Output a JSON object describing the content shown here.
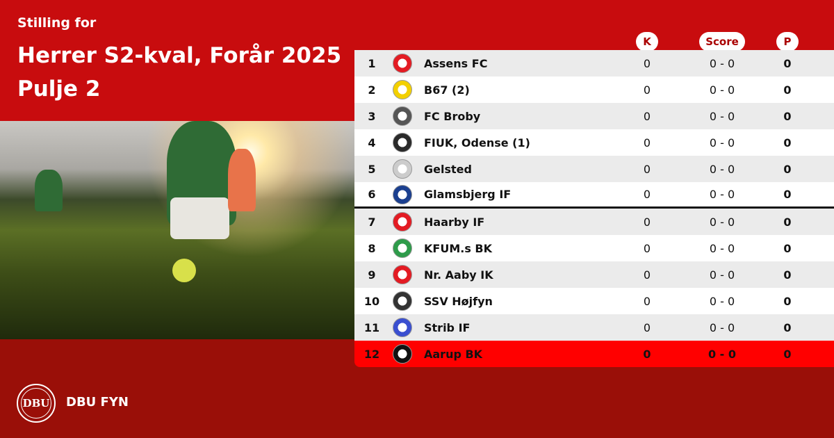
{
  "header": {
    "subtitle": "Stilling for",
    "title_line1": "Herrer S2-kval, Forår 2025",
    "title_line2": "Pulje 2"
  },
  "columns": {
    "k": "K",
    "score": "Score",
    "p": "P"
  },
  "colors": {
    "top": "#c80c0e",
    "bottom": "#9a0f08",
    "highlight": "#ff0000"
  },
  "rows": [
    {
      "rank": "1",
      "team": "Assens FC",
      "k": "0",
      "score": "0 - 0",
      "p": "0",
      "logo_color": "#e31b23"
    },
    {
      "rank": "2",
      "team": "B67 (2)",
      "k": "0",
      "score": "0 - 0",
      "p": "0",
      "logo_color": "#f3d000"
    },
    {
      "rank": "3",
      "team": "FC Broby",
      "k": "0",
      "score": "0 - 0",
      "p": "0",
      "logo_color": "#555555"
    },
    {
      "rank": "4",
      "team": "FIUK, Odense (1)",
      "k": "0",
      "score": "0 - 0",
      "p": "0",
      "logo_color": "#2a2a2a"
    },
    {
      "rank": "5",
      "team": "Gelsted",
      "k": "0",
      "score": "0 - 0",
      "p": "0",
      "logo_color": "#cccccc"
    },
    {
      "rank": "6",
      "team": "Glamsbjerg IF",
      "k": "0",
      "score": "0 - 0",
      "p": "0",
      "logo_color": "#1b3f8f"
    },
    {
      "rank": "7",
      "team": "Haarby IF",
      "k": "0",
      "score": "0 - 0",
      "p": "0",
      "logo_color": "#e31b23"
    },
    {
      "rank": "8",
      "team": "KFUM.s BK",
      "k": "0",
      "score": "0 - 0",
      "p": "0",
      "logo_color": "#2e9b4a"
    },
    {
      "rank": "9",
      "team": "Nr. Aaby IK",
      "k": "0",
      "score": "0 - 0",
      "p": "0",
      "logo_color": "#e31b23"
    },
    {
      "rank": "10",
      "team": "SSV Højfyn",
      "k": "0",
      "score": "0 - 0",
      "p": "0",
      "logo_color": "#333333"
    },
    {
      "rank": "11",
      "team": "Strib IF",
      "k": "0",
      "score": "0 - 0",
      "p": "0",
      "logo_color": "#3a4fd0"
    },
    {
      "rank": "12",
      "team": "Aarup BK",
      "k": "0",
      "score": "0 - 0",
      "p": "0",
      "logo_color": "#111111"
    }
  ],
  "footer": {
    "logo_text": "DBU",
    "brand": "DBU FYN"
  }
}
